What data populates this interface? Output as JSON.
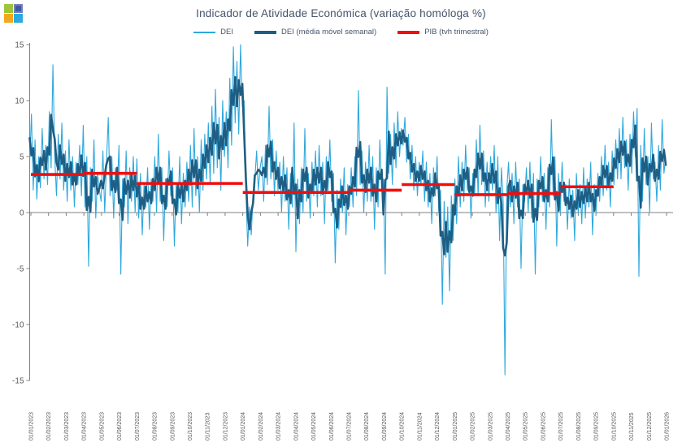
{
  "logo": {
    "name": "window-logo",
    "colors": {
      "top_left": "#9dc53b",
      "top_right": "#4457a6",
      "bottom_left": "#f3a71c",
      "bottom_right": "#2baae1"
    }
  },
  "chart_data": {
    "type": "line",
    "title": "Indicador de Atividade Económica (variação homóloga %)",
    "title_color": "#44546A",
    "text_color": "#595959",
    "axis_color": "#808080",
    "grid": "zero-line-only",
    "legend_position": "top-center",
    "y_axis": {
      "min": -15,
      "max": 15,
      "ticks": [
        15,
        10,
        5,
        0,
        -5,
        -10,
        -15
      ]
    },
    "x_axis": {
      "label_rotation_deg": 90,
      "tick_labels": [
        "01/01/2023",
        "01/02/2023",
        "01/03/2023",
        "01/04/2023",
        "01/05/2023",
        "01/06/2023",
        "01/07/2023",
        "01/08/2023",
        "01/09/2023",
        "01/10/2023",
        "01/11/2023",
        "01/12/2023",
        "01/01/2024",
        "01/02/2024",
        "01/03/2024",
        "01/04/2024",
        "01/05/2024",
        "01/06/2024",
        "01/07/2024",
        "01/08/2024",
        "01/09/2024",
        "01/10/2024",
        "01/11/2024",
        "01/12/2024",
        "01/01/2025",
        "01/02/2025",
        "01/03/2025",
        "01/04/2025",
        "01/05/2025",
        "01/06/2025",
        "01/07/2025",
        "01/08/2025",
        "01/09/2025",
        "01/10/2025",
        "01/11/2025",
        "01/12/2025",
        "01/01/2026"
      ]
    },
    "series": [
      {
        "name": "DEI",
        "type": "line",
        "color": "#2fa8dc",
        "stroke_width": 1.1,
        "start_date": "01/01/2023",
        "sample_days": 3,
        "values": [
          4.5,
          8.8,
          2.0,
          6.5,
          1.2,
          5.0,
          2.2,
          7.5,
          3.0,
          6.0,
          2.5,
          9.0,
          4.0,
          13.2,
          5.0,
          1.5,
          7.0,
          3.0,
          8.0,
          2.0,
          5.5,
          1.0,
          6.5,
          2.0,
          5.0,
          0.5,
          4.5,
          2.5,
          6.0,
          1.5,
          7.8,
          0.5,
          5.0,
          -4.8,
          4.0,
          1.0,
          6.5,
          -0.5,
          3.5,
          2.0,
          1.0,
          5.5,
          0.0,
          4.5,
          8.5,
          1.5,
          5.0,
          -0.5,
          4.0,
          2.0,
          6.0,
          -5.5,
          3.0,
          0.5,
          5.5,
          -1.0,
          4.0,
          1.0,
          5.0,
          0.0,
          4.8,
          -0.5,
          3.5,
          -2.0,
          2.5,
          0.5,
          4.0,
          -1.5,
          3.0,
          1.0,
          5.0,
          0.0,
          7.0,
          1.0,
          4.0,
          -2.5,
          3.0,
          0.5,
          5.5,
          1.5,
          4.0,
          -3.0,
          2.5,
          0.0,
          5.0,
          -1.0,
          3.5,
          0.5,
          4.5,
          1.0,
          6.0,
          0.5,
          7.5,
          1.5,
          5.0,
          0.0,
          6.5,
          2.0,
          7.0,
          3.0,
          8.0,
          2.5,
          9.5,
          3.5,
          11.0,
          4.0,
          8.5,
          2.0,
          10.0,
          5.0,
          9.0,
          4.0,
          12.0,
          6.0,
          14.8,
          8.0,
          13.5,
          7.0,
          15.0,
          9.5,
          10.0,
          2.0,
          -3.0,
          0.5,
          -2.0,
          1.5,
          3.0,
          5.5,
          2.0,
          4.0,
          5.0,
          1.0,
          6.0,
          2.5,
          9.5,
          3.0,
          6.5,
          1.5,
          5.5,
          2.0,
          4.5,
          0.0,
          5.0,
          1.0,
          4.0,
          -1.5,
          3.5,
          0.5,
          8.0,
          -3.5,
          3.0,
          -1.0,
          4.0,
          0.0,
          7.5,
          1.0,
          3.5,
          -0.5,
          4.5,
          1.5,
          5.5,
          0.5,
          6.0,
          1.5,
          4.5,
          -1.0,
          5.0,
          2.0,
          6.5,
          1.0,
          3.5,
          -4.5,
          2.0,
          -1.5,
          3.0,
          0.0,
          4.0,
          -2.0,
          2.5,
          0.5,
          4.0,
          0.5,
          5.0,
          1.5,
          10.9,
          2.5,
          5.5,
          0.0,
          4.5,
          1.0,
          6.0,
          1.0,
          5.0,
          -1.5,
          4.0,
          0.5,
          6.5,
          2.0,
          3.0,
          -5.5,
          11.2,
          3.5,
          7.0,
          2.5,
          8.0,
          4.0,
          9.0,
          5.0,
          7.5,
          6.0,
          8.5,
          4.5,
          7.0,
          3.0,
          6.0,
          2.0,
          5.0,
          1.5,
          4.5,
          2.5,
          5.5,
          1.0,
          4.5,
          0.5,
          3.5,
          -1.0,
          4.0,
          1.5,
          5.0,
          0.0,
          2.0,
          -8.2,
          1.0,
          -4.0,
          0.5,
          -7.0,
          1.5,
          -2.5,
          3.0,
          -1.0,
          5.0,
          0.5,
          4.5,
          1.0,
          6.0,
          2.0,
          4.0,
          -0.5,
          3.5,
          1.5,
          6.5,
          1.5,
          7.8,
          2.5,
          5.5,
          0.5,
          4.5,
          1.0,
          5.0,
          2.0,
          6.0,
          0.0,
          5.0,
          -2.5,
          4.0,
          1.0,
          -14.5,
          2.0,
          4.5,
          0.5,
          3.5,
          -1.0,
          4.5,
          0.5,
          3.0,
          -5.0,
          2.5,
          1.0,
          4.0,
          0.0,
          4.5,
          -0.5,
          3.5,
          -5.5,
          3.0,
          0.5,
          5.0,
          1.0,
          3.5,
          -1.5,
          4.0,
          0.5,
          8.3,
          1.5,
          5.0,
          -3.0,
          3.5,
          0.0,
          4.5,
          1.0,
          2.5,
          -1.5,
          3.0,
          -0.5,
          2.0,
          -2.5,
          3.5,
          0.0,
          2.5,
          -1.0,
          4.0,
          -0.5,
          3.0,
          0.5,
          4.5,
          -2.0,
          2.5,
          0.0,
          3.5,
          1.0,
          5.0,
          1.5,
          6.0,
          2.0,
          4.5,
          0.5,
          5.5,
          2.5,
          6.5,
          3.0,
          7.5,
          3.0,
          8.5,
          4.0,
          6.5,
          2.0,
          7.0,
          3.5,
          9.0,
          5.0,
          9.3,
          -5.7,
          6.0,
          1.0,
          7.5,
          2.5,
          5.0,
          0.0,
          8.0,
          3.0,
          4.5,
          1.0,
          6.0,
          2.0,
          8.3,
          3.5,
          5.0
        ]
      },
      {
        "name": "DEI (média móvel semanal)",
        "type": "line",
        "color": "#1f5e84",
        "stroke_width": 2.6,
        "derived": "média móvel centrada da série DEI",
        "window_points": 3
      },
      {
        "name": "PIB (tvh trimestral)",
        "type": "step",
        "color": "#f20d0d",
        "stroke_width": 3.6,
        "quarters": [
          {
            "quarter": "2023 T1",
            "value": 3.4
          },
          {
            "quarter": "2023 T2",
            "value": 3.5
          },
          {
            "quarter": "2023 T3",
            "value": 2.6
          },
          {
            "quarter": "2023 T4",
            "value": 2.6
          },
          {
            "quarter": "2024 T1",
            "value": 1.8
          },
          {
            "quarter": "2024 T2",
            "value": 1.8
          },
          {
            "quarter": "2024 T3",
            "value": 2.0
          },
          {
            "quarter": "2024 T4",
            "value": 2.5
          },
          {
            "quarter": "2025 T1",
            "value": 1.6
          },
          {
            "quarter": "2025 T2",
            "value": 1.7
          },
          {
            "quarter": "2025 T3",
            "value": 2.3
          }
        ]
      }
    ]
  }
}
